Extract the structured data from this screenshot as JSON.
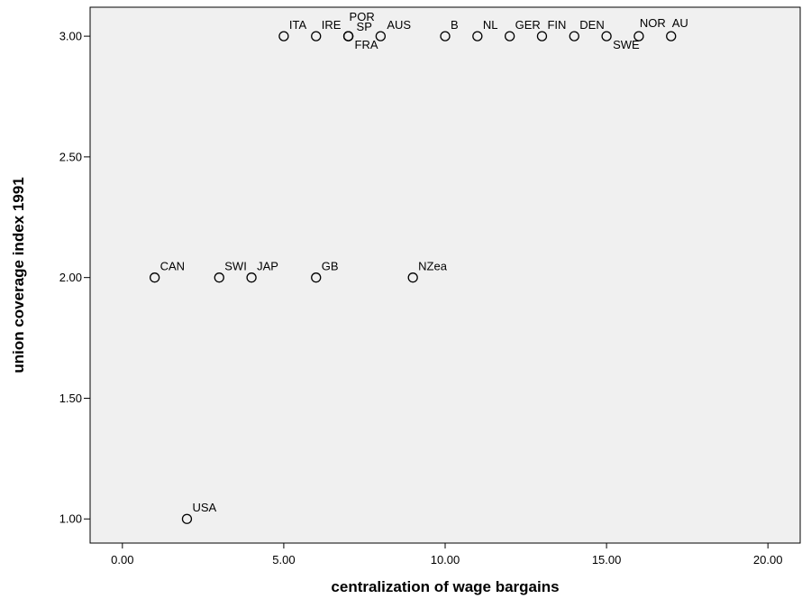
{
  "chart_data": {
    "type": "scatter",
    "xlabel": "centralization of wage bargains",
    "ylabel": "union coverage index 1991",
    "xlim": [
      -1,
      21
    ],
    "ylim": [
      0.9,
      3.12
    ],
    "x_ticks": [
      "0.00",
      "5.00",
      "10.00",
      "15.00",
      "20.00"
    ],
    "x_tick_values": [
      0,
      5,
      10,
      15,
      20
    ],
    "y_ticks": [
      "1.00",
      "1.50",
      "2.00",
      "2.50",
      "3.00"
    ],
    "y_tick_values": [
      1.0,
      1.5,
      2.0,
      2.5,
      3.0
    ],
    "grid": false,
    "points": [
      {
        "label": "ITA",
        "x": 5,
        "y": 3.0
      },
      {
        "label": "IRE",
        "x": 6,
        "y": 3.0
      },
      {
        "label": "POR",
        "x": 7,
        "y": 3.0
      },
      {
        "label": "SP",
        "x": 7,
        "y": 3.0
      },
      {
        "label": "FRA",
        "x": 7,
        "y": 3.0
      },
      {
        "label": "AUS",
        "x": 8,
        "y": 3.0
      },
      {
        "label": "B",
        "x": 10,
        "y": 3.0
      },
      {
        "label": "NL",
        "x": 11,
        "y": 3.0
      },
      {
        "label": "GER",
        "x": 12,
        "y": 3.0
      },
      {
        "label": "FIN",
        "x": 13,
        "y": 3.0
      },
      {
        "label": "DEN",
        "x": 14,
        "y": 3.0
      },
      {
        "label": "SWE",
        "x": 15,
        "y": 3.0
      },
      {
        "label": "NOR",
        "x": 16,
        "y": 3.0
      },
      {
        "label": "AU",
        "x": 17,
        "y": 3.0
      },
      {
        "label": "CAN",
        "x": 1,
        "y": 2.0
      },
      {
        "label": "SWI",
        "x": 3,
        "y": 2.0
      },
      {
        "label": "JAP",
        "x": 4,
        "y": 2.0
      },
      {
        "label": "GB",
        "x": 6,
        "y": 2.0
      },
      {
        "label": "NZea",
        "x": 9,
        "y": 2.0
      },
      {
        "label": "USA",
        "x": 2,
        "y": 1.0
      }
    ]
  }
}
